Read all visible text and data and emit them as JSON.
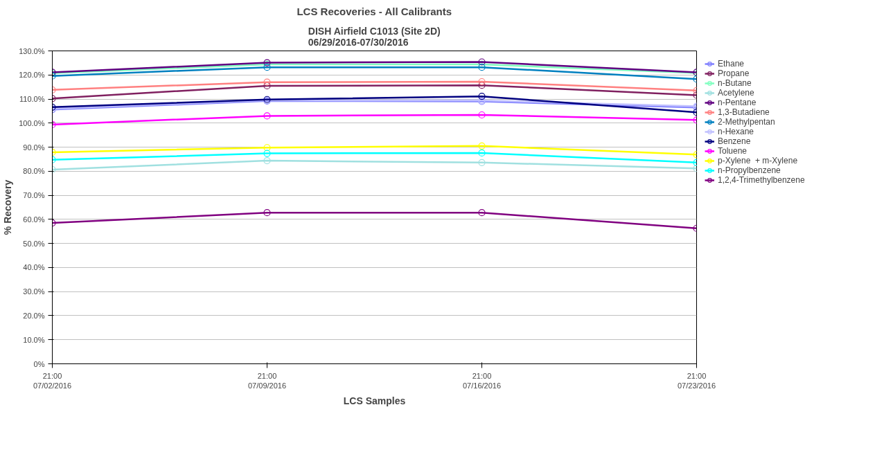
{
  "chart_data": {
    "type": "line",
    "title": "LCS Recoveries - All Calibrants",
    "subtitle": "DISH Airfield C1013 (Site 2D)\n06/29/2016-07/30/2016",
    "xlabel": "LCS Samples",
    "ylabel": "% Recovery",
    "x": [
      "2016-07-02T21:00",
      "2016-07-09T21:00",
      "2016-07-16T21:00",
      "2016-07-23T21:00"
    ],
    "xlim": [
      "2016-07-02T21:00",
      "2016-07-23T21:00"
    ],
    "xticks": [
      {
        "value": "2016-07-02T21:00",
        "label": "21:00\n07/02/2016"
      },
      {
        "value": "2016-07-09T21:00",
        "label": "21:00\n07/09/2016"
      },
      {
        "value": "2016-07-16T21:00",
        "label": "21:00\n07/16/2016"
      },
      {
        "value": "2016-07-23T21:00",
        "label": "21:00\n07/23/2016"
      }
    ],
    "ylim": [
      0,
      130
    ],
    "yticks": [
      {
        "value": 0,
        "label": "0%"
      },
      {
        "value": 10,
        "label": "10.0%"
      },
      {
        "value": 20,
        "label": "20.0%"
      },
      {
        "value": 30,
        "label": "30.0%"
      },
      {
        "value": 40,
        "label": "40.0%"
      },
      {
        "value": 50,
        "label": "50.0%"
      },
      {
        "value": 60,
        "label": "60.0%"
      },
      {
        "value": 70,
        "label": "70.0%"
      },
      {
        "value": 80,
        "label": "80.0%"
      },
      {
        "value": 90,
        "label": "90.0%"
      },
      {
        "value": 100,
        "label": "100.0%"
      },
      {
        "value": 110,
        "label": "110.0%"
      },
      {
        "value": 120,
        "label": "120.0%"
      },
      {
        "value": 130,
        "label": "130.0%"
      }
    ],
    "grid": "y",
    "legend": "right",
    "marker": "circle",
    "line_style": "solid",
    "series": [
      {
        "name": "Ethane",
        "color": "#8080ff",
        "values": [
          105.6,
          109.2,
          109.0,
          106.5
        ]
      },
      {
        "name": "Propane",
        "color": "#802060",
        "values": [
          110.2,
          115.5,
          115.7,
          111.6
        ]
      },
      {
        "name": "n-Butane",
        "color": "#80ffc0",
        "values": [
          120.7,
          124.4,
          124.4,
          120.8
        ]
      },
      {
        "name": "Acetylene",
        "color": "#a0e0e0",
        "values": [
          80.7,
          84.4,
          83.6,
          81.2
        ]
      },
      {
        "name": "n-Pentane",
        "color": "#600080",
        "values": [
          121.1,
          125.1,
          125.4,
          121.1
        ]
      },
      {
        "name": "1,3-Butadiene",
        "color": "#ff8080",
        "values": [
          113.8,
          117.0,
          117.2,
          113.5
        ]
      },
      {
        "name": "2-Methylpentan",
        "color": "#0080c0",
        "values": [
          119.6,
          123.2,
          123.2,
          118.3
        ]
      },
      {
        "name": "n-Hexane",
        "color": "#c0c0ff",
        "values": [
          106.0,
          109.5,
          109.4,
          107.0
        ]
      },
      {
        "name": "Benzene",
        "color": "#000080",
        "values": [
          106.6,
          109.8,
          111.1,
          104.5
        ]
      },
      {
        "name": "Toluene",
        "color": "#ff00ff",
        "values": [
          99.4,
          103.0,
          103.4,
          101.3
        ]
      },
      {
        "name": "p-Xylene  + m-Xylene",
        "color": "#ffff00",
        "values": [
          87.9,
          89.8,
          90.5,
          86.9
        ]
      },
      {
        "name": "n-Propylbenzene",
        "color": "#00ffff",
        "values": [
          84.8,
          87.4,
          87.6,
          83.6
        ]
      },
      {
        "name": "1,2,4-Trimethylbenzene",
        "color": "#800080",
        "values": [
          58.5,
          62.8,
          62.8,
          56.3
        ]
      }
    ]
  }
}
